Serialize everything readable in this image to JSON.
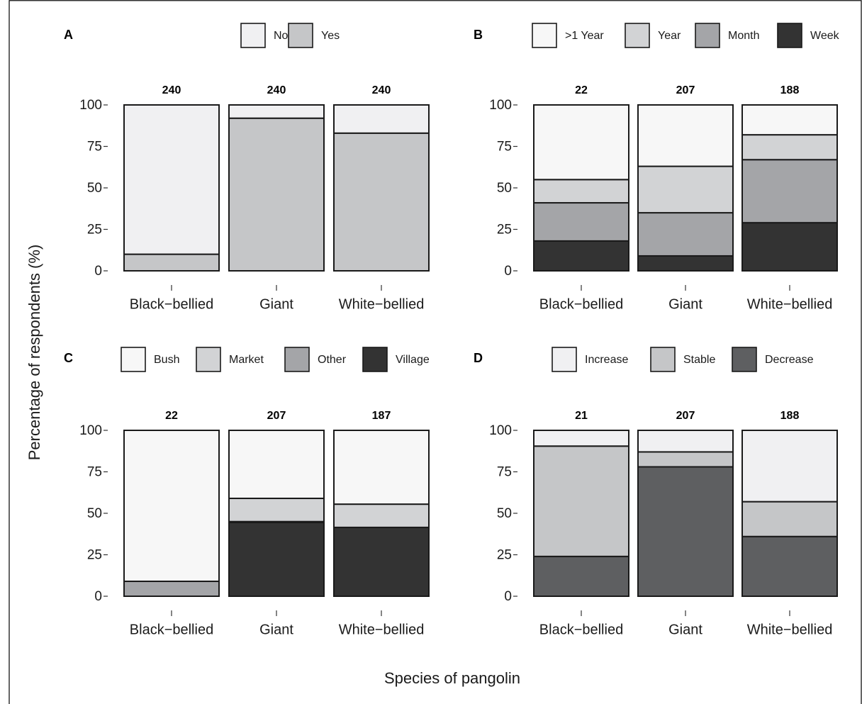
{
  "x_axis_title": "Species of pangolin",
  "y_axis_title": "Percentage of respondents (%)",
  "colors": {
    "No": "#f0f0f2",
    "Yes": "#c5c6c8",
    ">1 Year": "#f7f7f7",
    "Year": "#d2d3d5",
    "Month": "#a4a5a8",
    "Week": "#333333",
    "Bush": "#f7f7f7",
    "Market": "#d2d3d5",
    "Other": "#a4a5a8",
    "Village": "#333333",
    "Increase": "#f0f0f2",
    "Stable": "#c5c6c8",
    "Decrease": "#5e5f61"
  },
  "chart_data": [
    {
      "type": "bar",
      "stacked": true,
      "panel": "A",
      "categories": [
        "Black−bellied",
        "Giant",
        "White−bellied"
      ],
      "n_labels": [
        "240",
        "240",
        "240"
      ],
      "ylim": [
        0,
        100
      ],
      "yticks": [
        0,
        25,
        50,
        75,
        100
      ],
      "legend": [
        "No",
        "Yes"
      ],
      "series": [
        {
          "name": "Yes",
          "values": [
            10,
            92,
            83
          ]
        },
        {
          "name": "No",
          "values": [
            90,
            8,
            17
          ]
        }
      ]
    },
    {
      "type": "bar",
      "stacked": true,
      "panel": "B",
      "categories": [
        "Black−bellied",
        "Giant",
        "White−bellied"
      ],
      "n_labels": [
        "22",
        "207",
        "188"
      ],
      "ylim": [
        0,
        100
      ],
      "yticks": [
        0,
        25,
        50,
        75,
        100
      ],
      "legend": [
        ">1 Year",
        "Year",
        "Month",
        "Week"
      ],
      "series": [
        {
          "name": "Week",
          "values": [
            18,
            9,
            29
          ]
        },
        {
          "name": "Month",
          "values": [
            23,
            26,
            38
          ]
        },
        {
          "name": "Year",
          "values": [
            14,
            28,
            15
          ]
        },
        {
          "name": ">1 Year",
          "values": [
            45,
            37,
            18
          ]
        }
      ]
    },
    {
      "type": "bar",
      "stacked": true,
      "panel": "C",
      "categories": [
        "Black−bellied",
        "Giant",
        "White−bellied"
      ],
      "n_labels": [
        "22",
        "207",
        "187"
      ],
      "ylim": [
        0,
        100
      ],
      "yticks": [
        0,
        25,
        50,
        75,
        100
      ],
      "legend": [
        "Bush",
        "Market",
        "Other",
        "Village"
      ],
      "series": [
        {
          "name": "Village",
          "values": [
            0,
            44.5,
            41.5
          ]
        },
        {
          "name": "Other",
          "values": [
            9,
            0.5,
            0
          ]
        },
        {
          "name": "Market",
          "values": [
            0,
            14,
            14
          ]
        },
        {
          "name": "Bush",
          "values": [
            91,
            41,
            44.5
          ]
        }
      ]
    },
    {
      "type": "bar",
      "stacked": true,
      "panel": "D",
      "categories": [
        "Black−bellied",
        "Giant",
        "White−bellied"
      ],
      "n_labels": [
        "21",
        "207",
        "188"
      ],
      "ylim": [
        0,
        100
      ],
      "yticks": [
        0,
        25,
        50,
        75,
        100
      ],
      "legend": [
        "Increase",
        "Stable",
        "Decrease"
      ],
      "series": [
        {
          "name": "Decrease",
          "values": [
            24,
            78,
            36
          ]
        },
        {
          "name": "Stable",
          "values": [
            66.5,
            9,
            21
          ]
        },
        {
          "name": "Increase",
          "values": [
            9.5,
            13,
            43
          ]
        }
      ]
    }
  ]
}
